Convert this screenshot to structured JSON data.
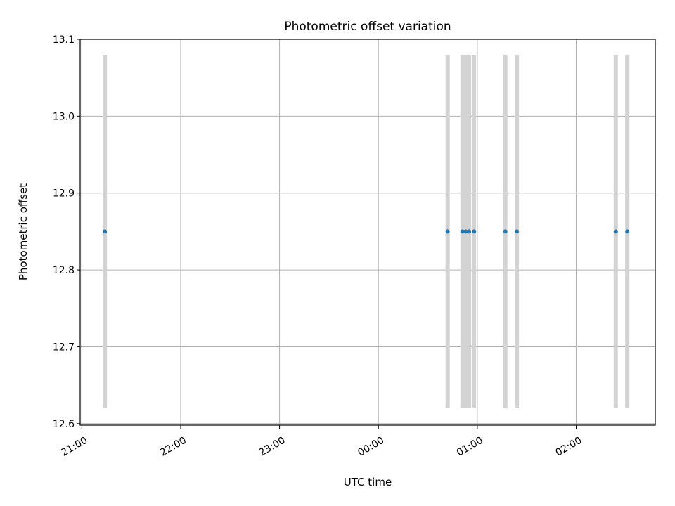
{
  "chart_data": {
    "type": "scatter",
    "title": "Photometric offset variation",
    "xlabel": "UTC time",
    "ylabel": "Photometric offset",
    "x_unit": "UTC",
    "xlim": [
      "20:59",
      "02:48"
    ],
    "ylim": [
      12.598,
      13.1
    ],
    "xticks": [
      "21:00",
      "22:00",
      "23:00",
      "00:00",
      "01:00",
      "02:00"
    ],
    "yticks": [
      "12.6",
      "12.7",
      "12.8",
      "12.9",
      "13.0",
      "13.1"
    ],
    "ytick_values": [
      12.6,
      12.7,
      12.8,
      12.9,
      13.0,
      13.1
    ],
    "grid": true,
    "legend": "none",
    "colors": {
      "points": "#1f77b4",
      "error_bars": "#d3d3d3",
      "grid": "#b0b0b0"
    },
    "points": [
      {
        "x": "21:14",
        "y": 12.85,
        "err_low": 12.62,
        "err_high": 13.08
      },
      {
        "x": "00:42",
        "y": 12.85,
        "err_low": 12.62,
        "err_high": 13.08
      },
      {
        "x": "00:51",
        "y": 12.85,
        "err_low": 12.62,
        "err_high": 13.08
      },
      {
        "x": "00:53",
        "y": 12.85,
        "err_low": 12.62,
        "err_high": 13.08
      },
      {
        "x": "00:55",
        "y": 12.85,
        "err_low": 12.62,
        "err_high": 13.08
      },
      {
        "x": "00:58",
        "y": 12.85,
        "err_low": 12.62,
        "err_high": 13.08
      },
      {
        "x": "01:17",
        "y": 12.85,
        "err_low": 12.62,
        "err_high": 13.08
      },
      {
        "x": "01:24",
        "y": 12.85,
        "err_low": 12.62,
        "err_high": 13.08
      },
      {
        "x": "02:24",
        "y": 12.85,
        "err_low": 12.62,
        "err_high": 13.08
      },
      {
        "x": "02:31",
        "y": 12.85,
        "err_low": 12.62,
        "err_high": 13.08
      }
    ]
  }
}
